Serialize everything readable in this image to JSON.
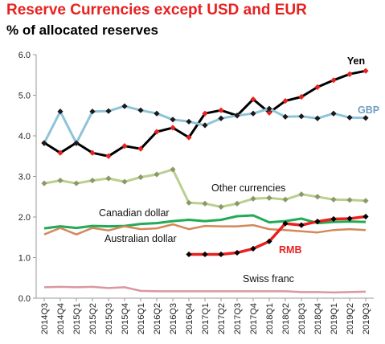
{
  "title": "Reserve Currencies except USD and EUR",
  "subtitle": "% of allocated reserves",
  "chart_data": {
    "type": "line",
    "title": "Reserve Currencies except USD and EUR",
    "subtitle": "% of allocated reserves",
    "xlabel": "",
    "ylabel": "",
    "ylim": [
      0,
      6
    ],
    "yticks": [
      "0.0",
      "1.0",
      "2.0",
      "3.0",
      "4.0",
      "5.0",
      "6.0"
    ],
    "grid": false,
    "x": [
      "2014Q3",
      "2014Q4",
      "2015Q1",
      "2015Q2",
      "2015Q3",
      "2015Q4",
      "2016Q1",
      "2016Q2",
      "2016Q3",
      "2016Q4",
      "2017Q1",
      "2017Q2",
      "2017Q3",
      "2017Q4",
      "2018Q1",
      "2018Q2",
      "2018Q3",
      "2018Q4",
      "2019Q1",
      "2019Q2",
      "2019Q3"
    ],
    "series": [
      {
        "name": "Yen",
        "color": "#000000",
        "marker_color": "#e8211f",
        "values": [
          3.83,
          3.58,
          3.83,
          3.58,
          3.5,
          3.75,
          3.68,
          4.1,
          4.2,
          3.96,
          4.55,
          4.63,
          4.5,
          4.9,
          4.57,
          4.86,
          4.96,
          5.2,
          5.37,
          5.52,
          5.6
        ]
      },
      {
        "name": "GBP",
        "color": "#8fc3d9",
        "marker_color": "#1a1a1a",
        "values": [
          3.82,
          4.6,
          3.82,
          4.6,
          4.61,
          4.73,
          4.63,
          4.55,
          4.4,
          4.35,
          4.26,
          4.43,
          4.5,
          4.55,
          4.67,
          4.47,
          4.48,
          4.43,
          4.55,
          4.45,
          4.44
        ]
      },
      {
        "name": "Other currencies",
        "color": "#b9d08e",
        "marker_color": "#8a9968",
        "values": [
          2.83,
          2.9,
          2.83,
          2.9,
          2.95,
          2.87,
          2.98,
          3.05,
          3.17,
          2.35,
          2.33,
          2.25,
          2.33,
          2.45,
          2.47,
          2.43,
          2.56,
          2.5,
          2.43,
          2.42,
          2.4
        ]
      },
      {
        "name": "Canadian dollar",
        "color": "#22aa55",
        "values": [
          1.72,
          1.77,
          1.73,
          1.78,
          1.77,
          1.78,
          1.83,
          1.85,
          1.9,
          1.93,
          1.9,
          1.93,
          2.02,
          2.04,
          1.87,
          1.9,
          1.96,
          1.85,
          1.88,
          1.89,
          1.88
        ]
      },
      {
        "name": "Australian dollar",
        "color": "#d4885a",
        "values": [
          1.57,
          1.73,
          1.57,
          1.73,
          1.67,
          1.77,
          1.7,
          1.72,
          1.82,
          1.7,
          1.78,
          1.77,
          1.77,
          1.8,
          1.7,
          1.68,
          1.65,
          1.62,
          1.68,
          1.7,
          1.68
        ]
      },
      {
        "name": "RMB",
        "color": "#e8211f",
        "marker_color": "#000000",
        "values": [
          null,
          null,
          null,
          null,
          null,
          null,
          null,
          null,
          null,
          1.08,
          1.08,
          1.08,
          1.12,
          1.22,
          1.4,
          1.84,
          1.8,
          1.89,
          1.95,
          1.96,
          2.01
        ]
      },
      {
        "name": "Swiss franc",
        "color": "#d9989e",
        "values": [
          0.27,
          0.28,
          0.27,
          0.28,
          0.25,
          0.27,
          0.18,
          0.17,
          0.17,
          0.17,
          0.17,
          0.17,
          0.17,
          0.17,
          0.17,
          0.17,
          0.15,
          0.15,
          0.14,
          0.15,
          0.16
        ]
      }
    ],
    "labels": {
      "yen": "Yen",
      "gbp": "GBP",
      "other": "Other currencies",
      "cad": "Canadian dollar",
      "aud": "Australian dollar",
      "rmb": "RMB",
      "chf": "Swiss franc"
    },
    "legend": "inline labels"
  }
}
